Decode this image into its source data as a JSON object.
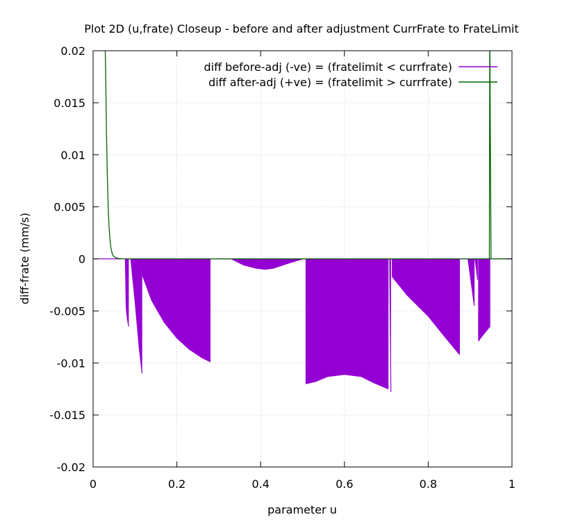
{
  "chart_data": {
    "type": "line",
    "title": "Plot 2D (u,frate) Closeup - before and after adjustment CurrFrate to FrateLimit",
    "xlabel": "parameter u",
    "ylabel": "diff-frate (mm/s)",
    "xlim": [
      0,
      1
    ],
    "ylim": [
      -0.02,
      0.02
    ],
    "xticks": [
      {
        "value": 0,
        "label": "0"
      },
      {
        "value": 0.2,
        "label": "0.2"
      },
      {
        "value": 0.4,
        "label": "0.4"
      },
      {
        "value": 0.6,
        "label": "0.6"
      },
      {
        "value": 0.8,
        "label": "0.8"
      },
      {
        "value": 1,
        "label": "1"
      }
    ],
    "yticks": [
      {
        "value": 0.02,
        "label": "0.02"
      },
      {
        "value": 0.015,
        "label": "0.015"
      },
      {
        "value": 0.01,
        "label": "0.01"
      },
      {
        "value": 0.005,
        "label": "0.005"
      },
      {
        "value": 0,
        "label": "0"
      },
      {
        "value": -0.005,
        "label": "-0.005"
      },
      {
        "value": -0.01,
        "label": "-0.01"
      },
      {
        "value": -0.015,
        "label": "-0.015"
      },
      {
        "value": -0.02,
        "label": "-0.02"
      }
    ],
    "grid": true,
    "legend_position": "top-right",
    "series": [
      {
        "name": "diff before-adj (-ve) = (fratelimit < currfrate)",
        "color": "#9400d3",
        "style": "filled-oscillation",
        "regions": [
          {
            "u": [
              0.077,
              0.079,
              0.082,
              0.085
            ],
            "y": [
              0,
              -0.0047,
              -0.0058,
              -0.0065
            ]
          },
          {
            "u": [
              0.09,
              0.1,
              0.11,
              0.117
            ],
            "y": [
              0,
              -0.004,
              -0.0085,
              -0.011
            ]
          },
          {
            "u": [
              0.117,
              0.14,
              0.17,
              0.2,
              0.23,
              0.26,
              0.28
            ],
            "y": [
              -0.0015,
              -0.004,
              -0.0061,
              -0.0076,
              -0.0087,
              -0.0095,
              -0.0099
            ]
          },
          {
            "u": [
              0.33,
              0.36,
              0.39,
              0.41,
              0.43,
              0.46,
              0.5
            ],
            "y": [
              0,
              -0.0006,
              -0.0009,
              -0.001,
              -0.0009,
              -0.0005,
              0
            ]
          },
          {
            "u": [
              0.508,
              0.53,
              0.56,
              0.6,
              0.64,
              0.67,
              0.705
            ],
            "y": [
              -0.012,
              -0.0118,
              -0.0113,
              -0.0111,
              -0.0113,
              -0.0119,
              -0.0125
            ]
          },
          {
            "u": [
              0.708,
              0.711
            ],
            "y": [
              0,
              -0.0128
            ]
          },
          {
            "u": [
              0.714,
              0.75,
              0.8,
              0.84,
              0.875
            ],
            "y": [
              -0.0017,
              -0.0035,
              -0.0055,
              -0.0075,
              -0.0092
            ]
          },
          {
            "u": [
              0.895,
              0.9,
              0.905,
              0.91
            ],
            "y": [
              0,
              -0.0015,
              -0.003,
              -0.0045
            ]
          },
          {
            "u": [
              0.912,
              0.915,
              0.918
            ],
            "y": [
              0,
              -0.001,
              -0.002
            ]
          },
          {
            "u": [
              0.92,
              0.925,
              0.935,
              0.945,
              0.948
            ],
            "y": [
              -0.0079,
              -0.0076,
              -0.0071,
              -0.0066,
              -0.0065
            ]
          }
        ]
      },
      {
        "name": "diff after-adj (+ve) = (fratelimit > currfrate)",
        "color": "#006400",
        "style": "line",
        "x": [
          0.028,
          0.03,
          0.032,
          0.034,
          0.036,
          0.038,
          0.04,
          0.042,
          0.045,
          0.048,
          0.052,
          0.056,
          0.06,
          0.07,
          0.1,
          0.3,
          0.5,
          0.7,
          0.9,
          0.946,
          0.947,
          0.95,
          1.0
        ],
        "y": [
          0.022,
          0.018,
          0.012,
          0.008,
          0.005,
          0.0032,
          0.002,
          0.0012,
          0.0006,
          0.0003,
          0.00015,
          8e-05,
          4e-05,
          1e-05,
          0,
          0,
          0,
          0,
          0,
          0,
          0.022,
          0,
          0
        ]
      }
    ]
  }
}
